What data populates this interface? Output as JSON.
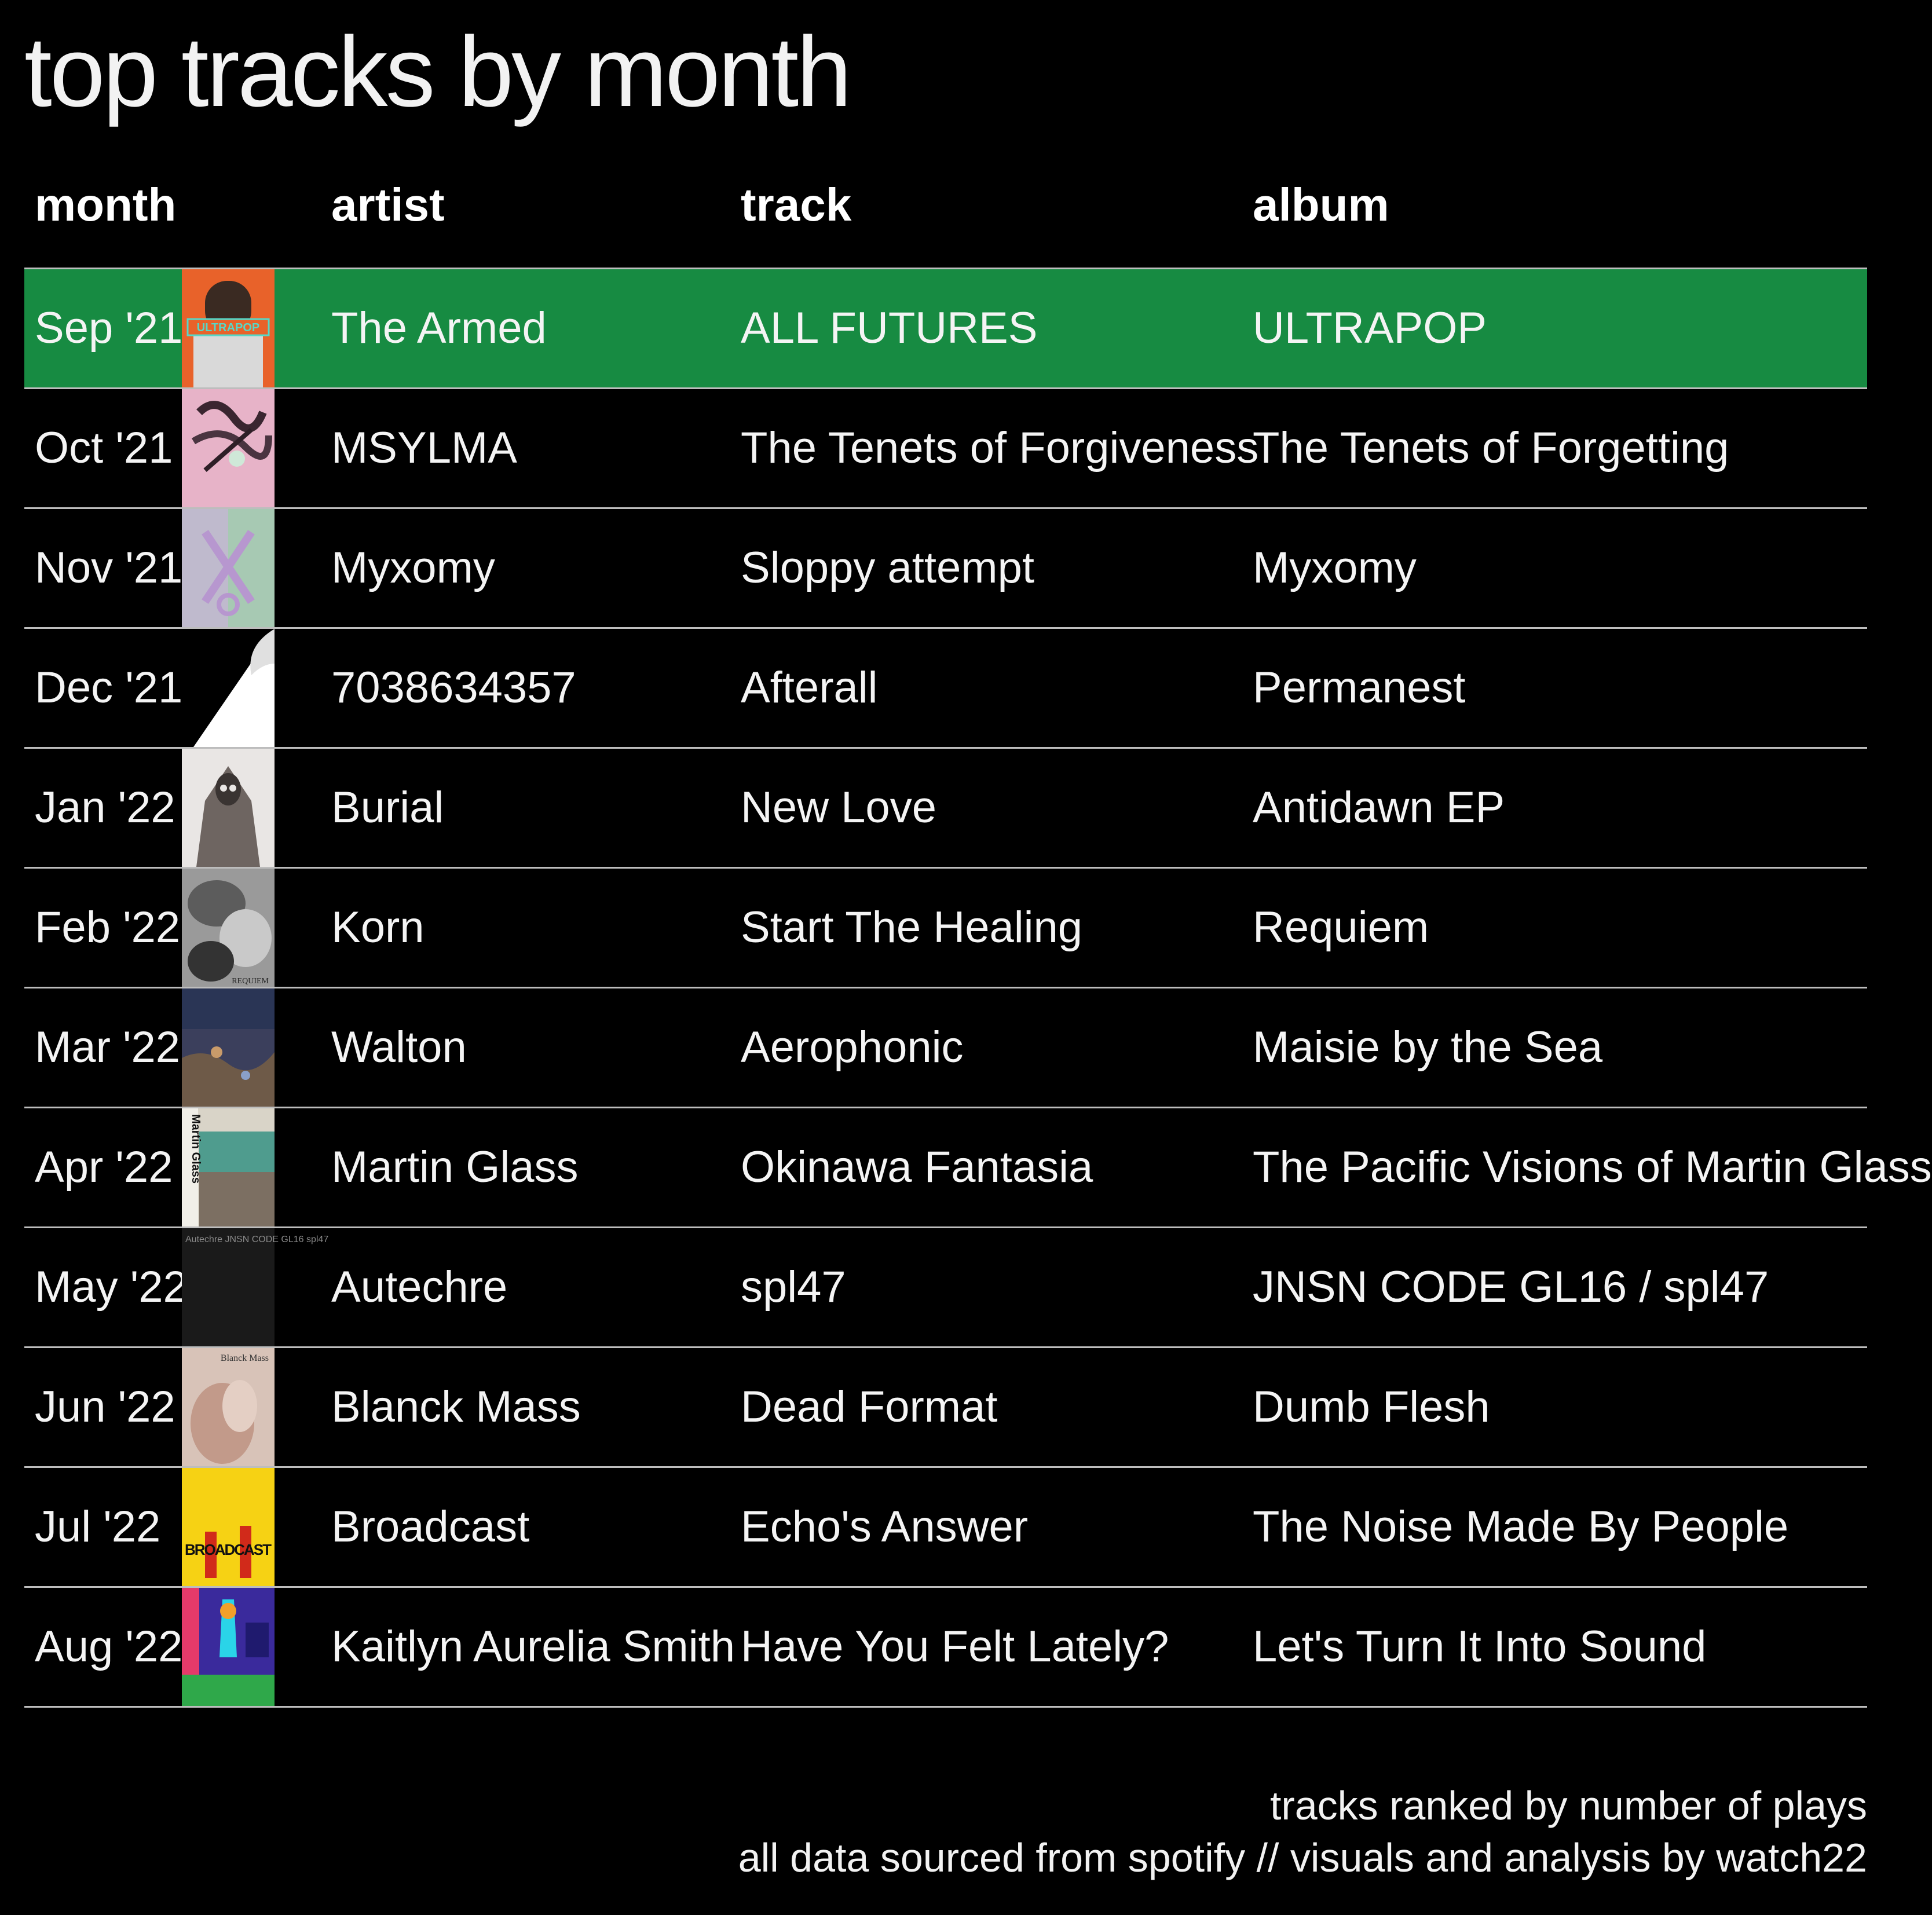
{
  "chart_data": {
    "type": "table",
    "title": "top tracks by month",
    "columns": [
      "month",
      "artist",
      "track",
      "album"
    ],
    "rows": [
      {
        "month": "Sep '21",
        "artist": "The Armed",
        "track": "ALL FUTURES",
        "album": "ULTRAPOP",
        "cover_text": "ULTRAPOP"
      },
      {
        "month": "Oct '21",
        "artist": "MSYLMA",
        "track": "The Tenets of Forgiveness",
        "album": "The Tenets of Forgetting"
      },
      {
        "month": "Nov '21",
        "artist": "Myxomy",
        "track": "Sloppy attempt",
        "album": "Myxomy"
      },
      {
        "month": "Dec '21",
        "artist": "7038634357",
        "track": "Afterall",
        "album": "Permanest"
      },
      {
        "month": "Jan '22",
        "artist": "Burial",
        "track": "New Love",
        "album": "Antidawn EP"
      },
      {
        "month": "Feb '22",
        "artist": "Korn",
        "track": "Start The Healing",
        "album": "Requiem",
        "cover_text": "REQUIEM"
      },
      {
        "month": "Mar '22",
        "artist": "Walton",
        "track": "Aerophonic",
        "album": "Maisie by the Sea"
      },
      {
        "month": "Apr '22",
        "artist": "Martin Glass",
        "track": "Okinawa Fantasia",
        "album": "The Pacific Visions of Martin Glass",
        "cover_text": "Martin Glass"
      },
      {
        "month": "May '22",
        "artist": "Autechre",
        "track": "spl47",
        "album": "JNSN CODE GL16 / spl47",
        "cover_text": "Autechre JNSN CODE GL16 spl47"
      },
      {
        "month": "Jun '22",
        "artist": "Blanck Mass",
        "track": "Dead Format",
        "album": "Dumb Flesh",
        "cover_text": "Blanck Mass"
      },
      {
        "month": "Jul '22",
        "artist": "Broadcast",
        "track": "Echo's Answer",
        "album": "The Noise Made By People",
        "cover_text": "BROADCAST"
      },
      {
        "month": "Aug '22",
        "artist": "Kaitlyn Aurelia Smith",
        "track": "Have You Felt Lately?",
        "album": "Let's Turn It Into Sound"
      }
    ],
    "highlight_row": 0
  },
  "colors": {
    "background": "#000000",
    "highlight": "#178b42",
    "text": "#ffffff",
    "rule": "#bdbdbd"
  },
  "footer": {
    "line1": "tracks ranked by number of plays",
    "line2": "all data sourced from spotify // visuals and analysis by watch22"
  }
}
